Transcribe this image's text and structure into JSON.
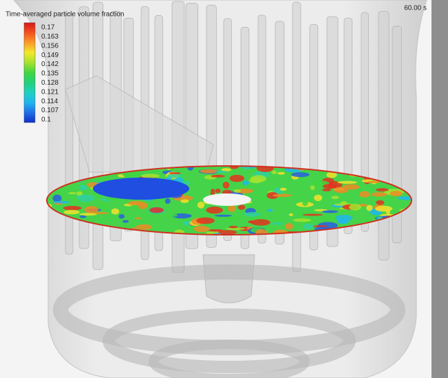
{
  "legend": {
    "title": "Time-averaged particle volume fraction",
    "labels": [
      "0.17",
      "0.163",
      "0.156",
      "0.149",
      "0.142",
      "0.135",
      "0.128",
      "0.121",
      "0.114",
      "0.107",
      "0.1"
    ]
  },
  "timestamp": "60.00 s"
}
